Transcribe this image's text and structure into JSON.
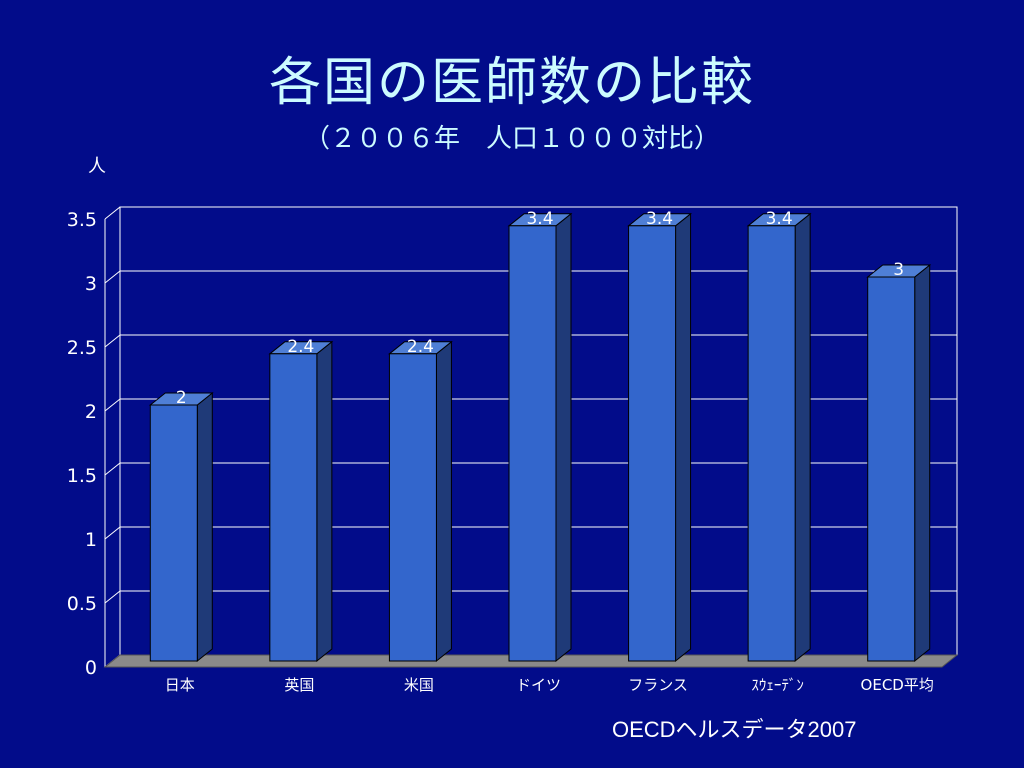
{
  "header": {
    "title": "各国の医師数の比較",
    "subtitle": "（２００６年　人口１０００対比）"
  },
  "source": "OECDヘルスデータ2007",
  "colors": {
    "background": "#020c8a",
    "bar_front": "#3366cc",
    "bar_side": "#1f3a78",
    "bar_top": "#4f7fd6",
    "floor": "#8a8a8a",
    "grid": "#ffffff"
  },
  "chart_data": {
    "type": "bar",
    "ylabel": "人",
    "ylim": [
      0,
      3.5
    ],
    "yticks": [
      "0",
      "0.5",
      "1",
      "1.5",
      "2",
      "2.5",
      "3",
      "3.5"
    ],
    "grid": true,
    "categories": [
      "日本",
      "英国",
      "米国",
      "ドイツ",
      "フランス",
      "ｽｳｪｰﾃﾞﾝ",
      "OECD平均"
    ],
    "values": [
      2,
      2.4,
      2.4,
      3.4,
      3.4,
      3.4,
      3
    ],
    "value_labels": [
      "2",
      "2.4",
      "2.4",
      "3.4",
      "3.4",
      "3.4",
      "3"
    ]
  }
}
